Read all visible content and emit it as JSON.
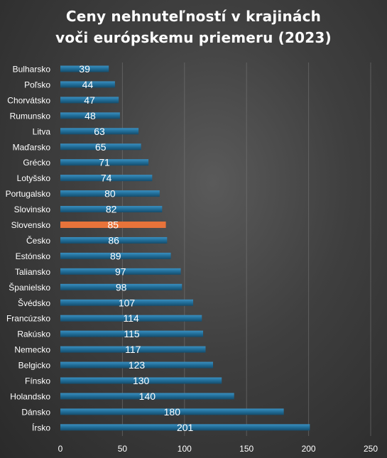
{
  "chart_data": {
    "type": "bar",
    "orientation": "horizontal",
    "title_line1": "Ceny nehnuteľností v krajinách",
    "title_line2": "voči európskemu priemeru (2023)",
    "xlim": [
      0,
      250
    ],
    "xticks": [
      0,
      50,
      100,
      150,
      200,
      250
    ],
    "grid": true,
    "bar_color": "#1f6a94",
    "bar_highlight_color": "#e8733a",
    "highlight_category": "Slovensko",
    "categories": [
      "Bulharsko",
      "Poľsko",
      "Chorvátsko",
      "Rumunsko",
      "Litva",
      "Maďarsko",
      "Grécko",
      "Lotyšsko",
      "Portugalsko",
      "Slovinsko",
      "Slovensko",
      "Česko",
      "Estónsko",
      "Taliansko",
      "Španielsko",
      "Švédsko",
      "Francúzsko",
      "Rakúsko",
      "Nemecko",
      "Belgicko",
      "Fínsko",
      "Holandsko",
      "Dánsko",
      "Írsko"
    ],
    "values": [
      39,
      44,
      47,
      48,
      63,
      65,
      71,
      74,
      80,
      82,
      85,
      86,
      89,
      97,
      98,
      107,
      114,
      115,
      117,
      123,
      130,
      140,
      180,
      201
    ]
  }
}
